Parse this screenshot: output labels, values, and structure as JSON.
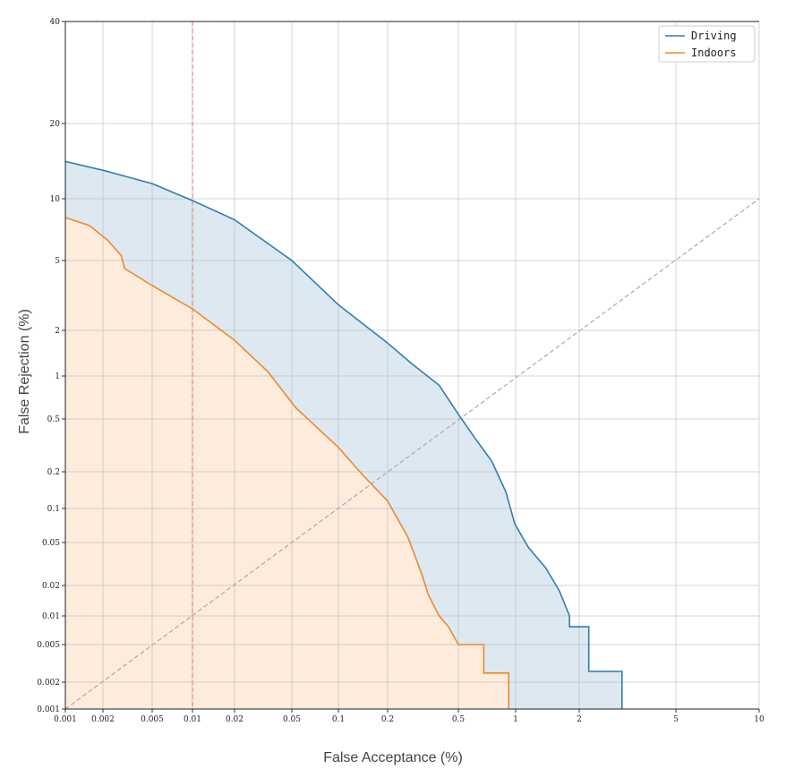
{
  "chart_data": {
    "type": "line",
    "title": "",
    "xlabel": "False Acceptance (%)",
    "ylabel": "False Rejection (%)",
    "xscale": "normal-deviate (probit)",
    "yscale": "normal-deviate (probit)",
    "xlim": [
      0.001,
      10
    ],
    "ylim": [
      0.001,
      40
    ],
    "grid": true,
    "legend_position": "top-right",
    "x_ticks": [
      {
        "v": 0.001,
        "label": "0.001"
      },
      {
        "v": 0.002,
        "label": "0.002"
      },
      {
        "v": 0.005,
        "label": "0.005"
      },
      {
        "v": 0.01,
        "label": "0.01"
      },
      {
        "v": 0.02,
        "label": "0.02"
      },
      {
        "v": 0.05,
        "label": "0.05"
      },
      {
        "v": 0.1,
        "label": "0.1"
      },
      {
        "v": 0.2,
        "label": "0.2"
      },
      {
        "v": 0.5,
        "label": "0.5"
      },
      {
        "v": 1,
        "label": "1"
      },
      {
        "v": 2,
        "label": "2"
      },
      {
        "v": 5,
        "label": "5"
      },
      {
        "v": 10,
        "label": "10"
      }
    ],
    "y_ticks": [
      {
        "v": 0.001,
        "label": "0.001"
      },
      {
        "v": 0.002,
        "label": "0.002"
      },
      {
        "v": 0.005,
        "label": "0.005"
      },
      {
        "v": 0.01,
        "label": "0.01"
      },
      {
        "v": 0.02,
        "label": "0.02"
      },
      {
        "v": 0.05,
        "label": "0.05"
      },
      {
        "v": 0.1,
        "label": "0.1"
      },
      {
        "v": 0.2,
        "label": "0.2"
      },
      {
        "v": 0.5,
        "label": "0.5"
      },
      {
        "v": 1,
        "label": "1"
      },
      {
        "v": 2,
        "label": "2"
      },
      {
        "v": 5,
        "label": "5"
      },
      {
        "v": 10,
        "label": "10"
      },
      {
        "v": 20,
        "label": "20"
      },
      {
        "v": 40,
        "label": "40"
      }
    ],
    "reference_lines": [
      {
        "type": "vertical",
        "x": 0.01,
        "color": "#f08080",
        "style": "dashed"
      },
      {
        "type": "diagonal",
        "equation": "y = x",
        "color": "#aaaaaa",
        "style": "dashed"
      }
    ],
    "series": [
      {
        "name": "Driving",
        "color": "#2e7fb0",
        "fill": "#dde8f1",
        "points": [
          [
            0.001,
            14.1
          ],
          [
            0.002,
            13
          ],
          [
            0.005,
            11.5
          ],
          [
            0.01,
            9.8
          ],
          [
            0.02,
            7.9
          ],
          [
            0.05,
            5
          ],
          [
            0.1,
            2.8
          ],
          [
            0.2,
            1.65
          ],
          [
            0.27,
            1.22
          ],
          [
            0.39,
            0.86
          ],
          [
            0.5,
            0.54
          ],
          [
            0.61,
            0.36
          ],
          [
            0.75,
            0.24
          ],
          [
            0.89,
            0.136
          ],
          [
            0.99,
            0.073
          ],
          [
            1.15,
            0.045
          ],
          [
            1.39,
            0.029
          ],
          [
            1.61,
            0.0177
          ],
          [
            1.8,
            0.01
          ],
          [
            1.8,
            0.0077
          ],
          [
            2.19,
            0.0077
          ],
          [
            2.19,
            0.0026
          ],
          [
            3.0,
            0.0026
          ],
          [
            3.0,
            0.001
          ]
        ]
      },
      {
        "name": "Indoors",
        "color": "#f0882a",
        "fill": "#fdebdc",
        "points": [
          [
            0.001,
            8.1
          ],
          [
            0.00156,
            7.4
          ],
          [
            0.00217,
            6.3
          ],
          [
            0.0028,
            5.3
          ],
          [
            0.003,
            4.5
          ],
          [
            0.005,
            3.6
          ],
          [
            0.01,
            2.65
          ],
          [
            0.02,
            1.72
          ],
          [
            0.034,
            1.07
          ],
          [
            0.053,
            0.6
          ],
          [
            0.1,
            0.305
          ],
          [
            0.14,
            0.19
          ],
          [
            0.2,
            0.115
          ],
          [
            0.26,
            0.056
          ],
          [
            0.31,
            0.026
          ],
          [
            0.34,
            0.016
          ],
          [
            0.39,
            0.01
          ],
          [
            0.44,
            0.0077
          ],
          [
            0.5,
            0.005
          ],
          [
            0.68,
            0.005
          ],
          [
            0.68,
            0.0025
          ],
          [
            0.92,
            0.0025
          ],
          [
            0.92,
            0.001
          ]
        ]
      }
    ]
  }
}
